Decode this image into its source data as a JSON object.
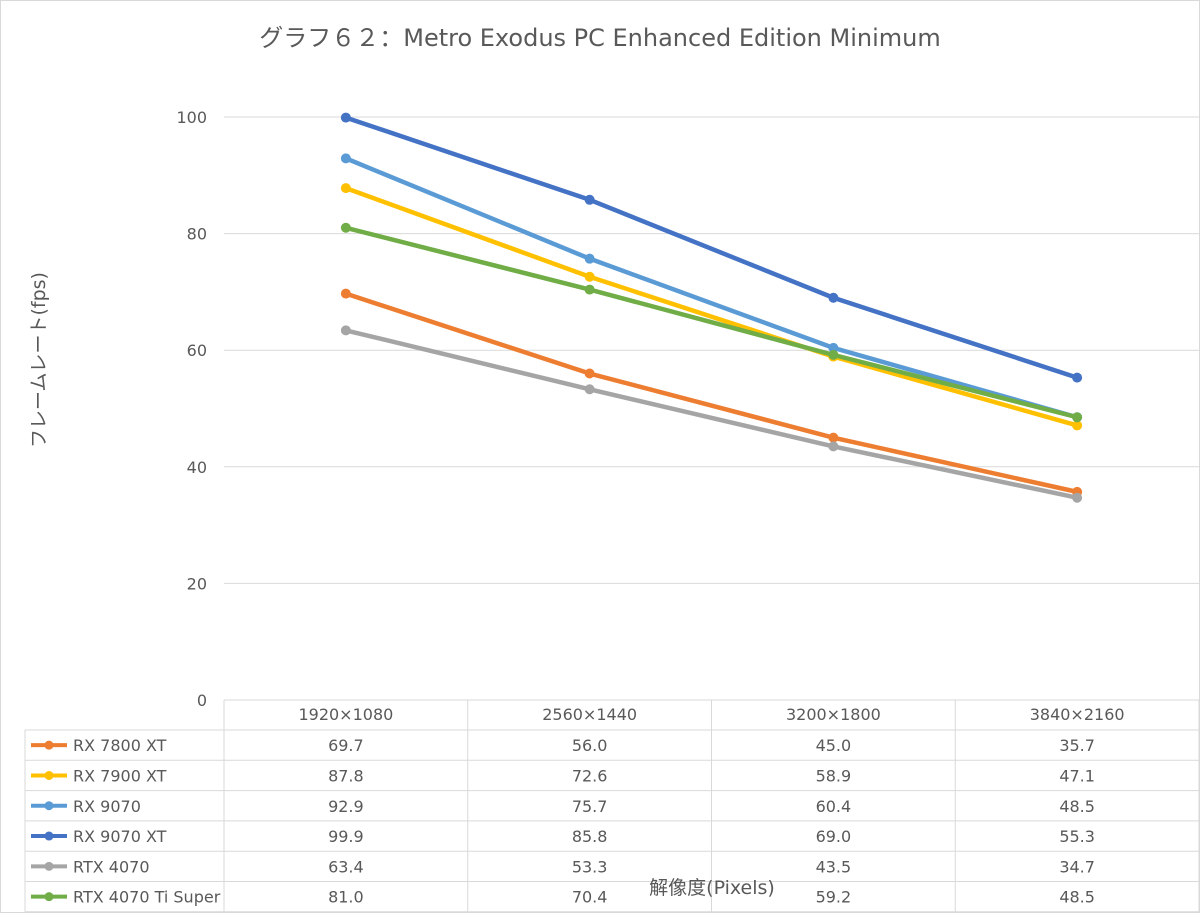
{
  "chart_data": {
    "type": "line",
    "title": "グラフ６２：Metro Exodus PC Enhanced Edition Minimum",
    "xlabel": "解像度(Pixels)",
    "ylabel": "フレームレート(fps)",
    "categories": [
      "1920×1080",
      "2560×1440",
      "3200×1800",
      "3840×2160"
    ],
    "ylim": [
      0,
      100
    ],
    "yticks": [
      0,
      20,
      40,
      60,
      80,
      100
    ],
    "grid": true,
    "legend": "data-table",
    "series": [
      {
        "name": "RX 7800 XT",
        "color": "#ED7D31",
        "values": [
          69.7,
          56.0,
          45.0,
          35.7
        ],
        "labels": [
          "69.7",
          "56.0",
          "45.0",
          "35.7"
        ]
      },
      {
        "name": "RX 7900 XT",
        "color": "#FFC000",
        "values": [
          87.8,
          72.6,
          58.9,
          47.1
        ],
        "labels": [
          "87.8",
          "72.6",
          "58.9",
          "47.1"
        ]
      },
      {
        "name": "RX 9070",
        "color": "#5B9BD5",
        "values": [
          92.9,
          75.7,
          60.4,
          48.5
        ],
        "labels": [
          "92.9",
          "75.7",
          "60.4",
          "48.5"
        ]
      },
      {
        "name": "RX 9070 XT",
        "color": "#4472C4",
        "values": [
          99.9,
          85.8,
          69.0,
          55.3
        ],
        "labels": [
          "99.9",
          "85.8",
          "69.0",
          "55.3"
        ]
      },
      {
        "name": "RTX 4070",
        "color": "#A5A5A5",
        "values": [
          63.4,
          53.3,
          43.5,
          34.7
        ],
        "labels": [
          "63.4",
          "53.3",
          "43.5",
          "34.7"
        ]
      },
      {
        "name": "RTX 4070 Ti Super",
        "color": "#70AD47",
        "values": [
          81.0,
          70.4,
          59.2,
          48.5
        ],
        "labels": [
          "81.0",
          "70.4",
          "59.2",
          "48.5"
        ]
      }
    ]
  }
}
